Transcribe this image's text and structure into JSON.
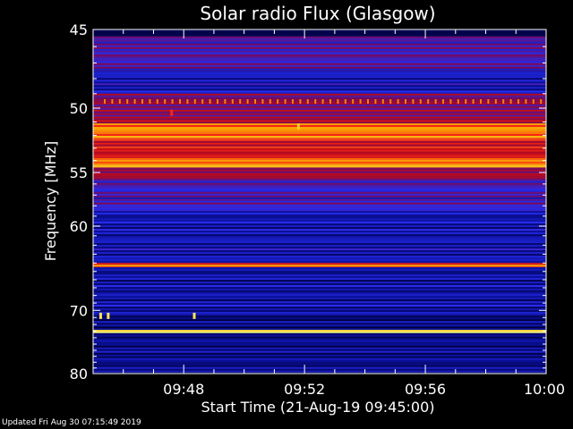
{
  "chart_data": {
    "type": "heatmap",
    "title": "Solar radio Flux (Glasgow)",
    "xlabel": "Start Time (21-Aug-19 09:45:00)",
    "ylabel": "Frequency [MHz]",
    "ylim": [
      45,
      80
    ],
    "xlim_minutes_after_0945": [
      0,
      15
    ],
    "y_scale": "reciprocal",
    "y_ticks": [
      45,
      50,
      55,
      60,
      70,
      80
    ],
    "y_tick_labels": [
      "45",
      "50",
      "55",
      "60",
      "70",
      "80"
    ],
    "x_ticks_minutes": [
      3,
      7,
      11,
      15
    ],
    "x_tick_labels": [
      "09:48",
      "09:52",
      "09:56",
      "10:00"
    ],
    "colormap": [
      "#00003c",
      "#0a1096",
      "#2a2cf0",
      "#7a0a5a",
      "#c80a10",
      "#ff2a12",
      "#ffb400",
      "#ffff80"
    ],
    "frequency_bands": [
      {
        "from_mhz": 45.0,
        "to_mhz": 45.4,
        "intensity": 0.05
      },
      {
        "from_mhz": 45.4,
        "to_mhz": 47.5,
        "intensity": 0.35
      },
      {
        "from_mhz": 47.5,
        "to_mhz": 49.0,
        "intensity": 0.2
      },
      {
        "from_mhz": 49.0,
        "to_mhz": 50.6,
        "intensity": 0.45
      },
      {
        "from_mhz": 50.6,
        "to_mhz": 51.1,
        "intensity": 0.5
      },
      {
        "from_mhz": 51.1,
        "to_mhz": 52.3,
        "intensity": 0.8
      },
      {
        "from_mhz": 52.3,
        "to_mhz": 53.8,
        "intensity": 0.62
      },
      {
        "from_mhz": 53.8,
        "to_mhz": 54.6,
        "intensity": 0.82
      },
      {
        "from_mhz": 54.6,
        "to_mhz": 55.6,
        "intensity": 0.5
      },
      {
        "from_mhz": 55.6,
        "to_mhz": 58.5,
        "intensity": 0.33
      },
      {
        "from_mhz": 58.5,
        "to_mhz": 64.0,
        "intensity": 0.18
      },
      {
        "from_mhz": 64.0,
        "to_mhz": 64.5,
        "intensity": 0.76
      },
      {
        "from_mhz": 64.5,
        "to_mhz": 70.5,
        "intensity": 0.16
      },
      {
        "from_mhz": 70.5,
        "to_mhz": 72.8,
        "intensity": 0.1
      },
      {
        "from_mhz": 72.8,
        "to_mhz": 73.3,
        "intensity": 0.97
      },
      {
        "from_mhz": 73.3,
        "to_mhz": 80.0,
        "intensity": 0.12
      }
    ],
    "interference_line_mhz": 49.5,
    "spikes": [
      {
        "time_min": 6.8,
        "freq_mhz": 51.3,
        "intensity": 0.9
      },
      {
        "time_min": 2.6,
        "freq_mhz": 50.3,
        "intensity": 0.7
      },
      {
        "time_min": 0.25,
        "freq_mhz": 70.7,
        "intensity": 0.95
      },
      {
        "time_min": 0.5,
        "freq_mhz": 70.7,
        "intensity": 0.95
      },
      {
        "time_min": 3.35,
        "freq_mhz": 70.7,
        "intensity": 0.95
      }
    ]
  },
  "footer": {
    "updated_text": "Updated Fri Aug 30 07:15:49 2019"
  }
}
